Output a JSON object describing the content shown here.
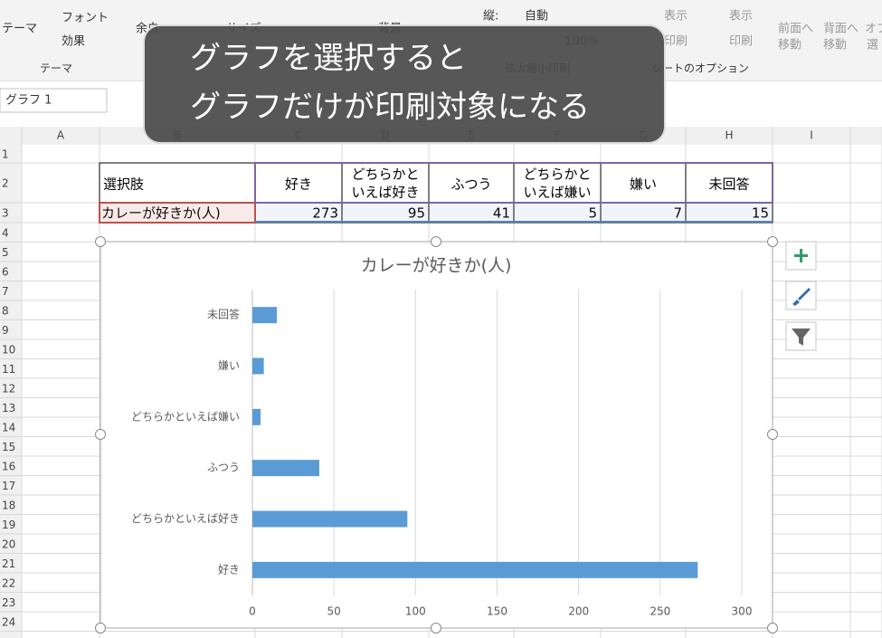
{
  "ribbon": {
    "items": [
      "テーマ",
      "フォント",
      "効果",
      "テーマ",
      "余白",
      "サイズ",
      "背景",
      "縦:",
      "自動",
      "100%",
      "拡大縮小印刷",
      "表示",
      "表示",
      "印刷",
      "印刷",
      "シートのオプション",
      "前面へ",
      "移動",
      "背面へ",
      "移動",
      "オブ",
      "選"
    ]
  },
  "overlay": {
    "lines": [
      "グラフを選択すると",
      "グラフだけが印刷対象になる"
    ]
  },
  "name_box": "グラフ 1",
  "columns": [
    "A",
    "B",
    "C",
    "D",
    "E",
    "F",
    "G",
    "H",
    "I"
  ],
  "rows": [
    1,
    2,
    3,
    4,
    5,
    6,
    7,
    8,
    9,
    10,
    11,
    12,
    13,
    14,
    15,
    16,
    17,
    18,
    19,
    20,
    21,
    22,
    23,
    24
  ],
  "table": {
    "header": [
      [
        "選択肢"
      ],
      [
        "好き"
      ],
      [
        "どちらかと",
        "いえば好き"
      ],
      [
        "ふつう"
      ],
      [
        "どちらかと",
        "いえば嫌い"
      ],
      [
        "嫌い"
      ],
      [
        "未回答"
      ]
    ],
    "row": [
      "カレーが好きか(人)",
      273,
      95,
      41,
      5,
      7,
      15
    ]
  },
  "chart_data": {
    "type": "bar",
    "orientation": "horizontal",
    "title": "カレーが好きか(人)",
    "categories": [
      "好き",
      "どちらかといえば好き",
      "ふつう",
      "どちらかといえば嫌い",
      "嫌い",
      "未回答"
    ],
    "values": [
      273,
      95,
      41,
      5,
      7,
      15
    ],
    "color": "#5b9bd5",
    "xlim": [
      0,
      300
    ],
    "xticks": [
      0,
      50,
      100,
      150,
      200,
      250,
      300
    ],
    "grid": true
  }
}
